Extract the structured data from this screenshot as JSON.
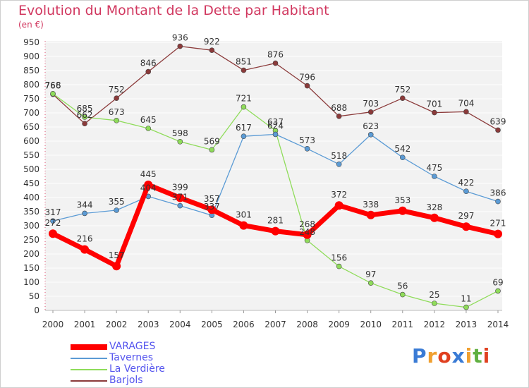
{
  "title": "Evolution du Montant de la Dette par Habitant",
  "unit_label": "(en €)",
  "logo_text": "Proxiti",
  "chart_data": {
    "type": "line",
    "title": "Evolution du Montant de la Dette par Habitant",
    "subtitle": "(en €)",
    "xlabel": "",
    "ylabel": "",
    "x": [
      "2000",
      "2001",
      "2002",
      "2003",
      "2004",
      "2005",
      "2006",
      "2007",
      "2008",
      "2009",
      "2010",
      "2011",
      "2012",
      "2013",
      "2014"
    ],
    "ylim": [
      0,
      950
    ],
    "yticks": [
      0,
      50,
      100,
      150,
      200,
      250,
      300,
      350,
      400,
      450,
      500,
      550,
      600,
      650,
      700,
      750,
      800,
      850,
      900,
      950
    ],
    "grid": "horizontal",
    "legend_position": "bottom-left",
    "series": [
      {
        "name": "VARAGES",
        "color": "#ff0000",
        "values": [
          272,
          216,
          157,
          445,
          399,
          357,
          301,
          281,
          268,
          372,
          338,
          353,
          328,
          297,
          271
        ]
      },
      {
        "name": "Tavernes",
        "color": "#5b9bd5",
        "values": [
          317,
          344,
          355,
          404,
          371,
          337,
          617,
          624,
          573,
          518,
          623,
          542,
          475,
          422,
          386
        ]
      },
      {
        "name": "La Verdière",
        "color": "#8fdc5a",
        "values": [
          768,
          685,
          673,
          645,
          598,
          569,
          721,
          637,
          248,
          156,
          97,
          56,
          25,
          11,
          69
        ]
      },
      {
        "name": "Barjols",
        "color": "#8b3a3a",
        "values": [
          766,
          662,
          752,
          846,
          936,
          922,
          851,
          876,
          796,
          688,
          703,
          752,
          701,
          704,
          639
        ]
      }
    ],
    "data_labels": [
      {
        "series": "VARAGES",
        "labels": [
          "272",
          "216",
          "157",
          "445",
          "399",
          "357",
          "301",
          "281",
          "268",
          "372",
          "338",
          "353",
          "328",
          "297",
          "271"
        ]
      },
      {
        "series": "Tavernes",
        "labels": [
          "317",
          "344",
          "355",
          "404",
          "371",
          "337",
          "617",
          "624",
          "573",
          "518",
          "623",
          "542",
          "475",
          "422",
          "386"
        ]
      },
      {
        "series": "La Verdière",
        "labels": [
          "768",
          "685",
          "673",
          "645",
          "598",
          "569",
          "721",
          "637",
          "248",
          "156",
          "97",
          "56",
          "25",
          "11",
          "69"
        ]
      },
      {
        "series": "Barjols",
        "labels": [
          "766",
          "662",
          "752",
          "846",
          "936",
          "922",
          "851",
          "876",
          "796",
          "688",
          "703",
          "752",
          "701",
          "704",
          "639"
        ]
      }
    ]
  }
}
